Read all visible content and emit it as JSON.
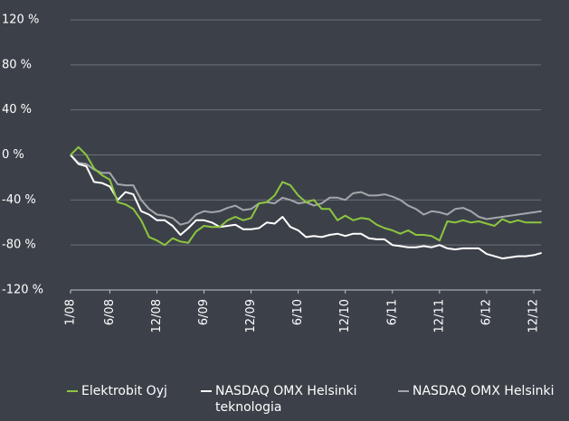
{
  "chart_data": {
    "type": "line",
    "categories": [
      "1/08",
      null,
      null,
      null,
      null,
      "6/08",
      null,
      null,
      null,
      null,
      null,
      "12/08",
      null,
      null,
      null,
      null,
      null,
      "6/09",
      null,
      null,
      null,
      null,
      null,
      "12/09",
      null,
      null,
      null,
      null,
      null,
      "6/10",
      null,
      null,
      null,
      null,
      null,
      "12/10",
      null,
      null,
      null,
      null,
      null,
      "6/11",
      null,
      null,
      null,
      null,
      null,
      "12/11",
      null,
      null,
      null,
      null,
      null,
      "6/12",
      null,
      null,
      null,
      null,
      null,
      "12/12",
      null
    ],
    "series": [
      {
        "name": "Elektrobit Oyj",
        "color": "#8dc63f",
        "values": [
          0,
          7,
          0,
          -12,
          -18,
          -22,
          -42,
          -44,
          -48,
          -58,
          -73,
          -76,
          -80,
          -74,
          -77,
          -78,
          -68,
          -63,
          -64,
          -64,
          -58,
          -55,
          -58,
          -56,
          -43,
          -42,
          -36,
          -24,
          -27,
          -36,
          -42,
          -40,
          -48,
          -48,
          -58,
          -54,
          -58,
          -56,
          -57,
          -62,
          -65,
          -67,
          -70,
          -67,
          -71,
          -71,
          -72,
          -76,
          -59,
          -60,
          -58,
          -60,
          -59,
          -61,
          -63,
          -57,
          -60,
          -58,
          -60,
          -60,
          -60
        ]
      },
      {
        "name": "NASDAQ OMX Helsinki teknologia",
        "color": "#ffffff",
        "values": [
          0,
          -8,
          -10,
          -24,
          -25,
          -28,
          -40,
          -33,
          -35,
          -50,
          -53,
          -58,
          -58,
          -63,
          -71,
          -65,
          -58,
          -58,
          -60,
          -64,
          -63,
          -62,
          -66,
          -66,
          -65,
          -60,
          -61,
          -55,
          -64,
          -67,
          -73,
          -72,
          -73,
          -71,
          -70,
          -72,
          -70,
          -70,
          -74,
          -75,
          -75,
          -80,
          -81,
          -82,
          -82,
          -81,
          -82,
          -80,
          -83,
          -84,
          -83,
          -83,
          -83,
          -88,
          -90,
          -92,
          -91,
          -90,
          -90,
          -89,
          -87
        ]
      },
      {
        "name": "NASDAQ OMX Helsinki",
        "color": "#a3a7ab",
        "values": [
          0,
          -7,
          -8,
          -13,
          -16,
          -16,
          -26,
          -27,
          -27,
          -40,
          -48,
          -53,
          -54,
          -56,
          -62,
          -60,
          -53,
          -50,
          -51,
          -50,
          -47,
          -45,
          -49,
          -48,
          -43,
          -42,
          -43,
          -38,
          -40,
          -43,
          -42,
          -45,
          -43,
          -38,
          -38,
          -40,
          -34,
          -33,
          -36,
          -36,
          -35,
          -37,
          -40,
          -45,
          -48,
          -53,
          -50,
          -51,
          -53,
          -48,
          -47,
          -50,
          -55,
          -57,
          -56,
          -55,
          -54,
          -53,
          -52,
          -51,
          -50
        ]
      }
    ],
    "ylim": [
      -120,
      120
    ],
    "yticks": [
      {
        "value": -120,
        "label": "-120 %"
      },
      {
        "value": -80,
        "label": "-80 %"
      },
      {
        "value": -40,
        "label": "-40 %"
      },
      {
        "value": 0,
        "label": "0 %"
      },
      {
        "value": 40,
        "label": "40 %"
      },
      {
        "value": 80,
        "label": "80 %"
      },
      {
        "value": 120,
        "label": "120 %"
      }
    ],
    "grid": true
  }
}
